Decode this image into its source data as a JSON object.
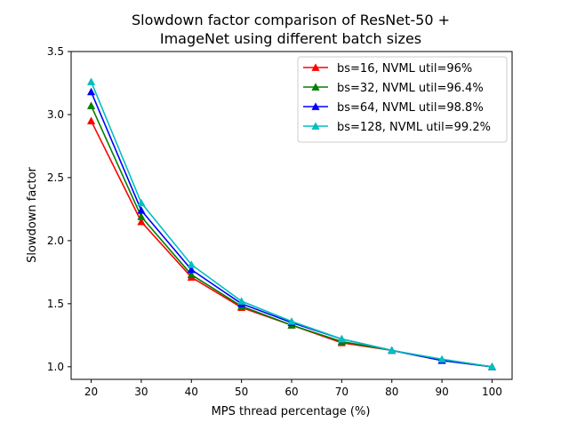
{
  "chart_data": {
    "type": "line",
    "title": [
      "Slowdown factor comparison of ResNet-50 +",
      "ImageNet using different batch sizes"
    ],
    "xlabel": "MPS thread percentage (%)",
    "ylabel": "Slowdown factor",
    "x": [
      20,
      30,
      40,
      50,
      60,
      70,
      80,
      90,
      100
    ],
    "xticks": [
      "20",
      "30",
      "40",
      "50",
      "60",
      "70",
      "80",
      "90",
      "100"
    ],
    "yticks": [
      "1.0",
      "1.5",
      "2.0",
      "2.5",
      "3.0",
      "3.5"
    ],
    "xlim": [
      16,
      104
    ],
    "ylim": [
      0.9,
      3.5
    ],
    "grid": false,
    "legend_position": "top-right",
    "marker": "triangle-up",
    "series": [
      {
        "name": "bs=16, NVML util=96%",
        "color": "#ff0000",
        "values": [
          2.95,
          2.15,
          1.71,
          1.47,
          1.33,
          1.19,
          1.13,
          1.05,
          1.0
        ]
      },
      {
        "name": "bs=32, NVML util=96.4%",
        "color": "#008000",
        "values": [
          3.07,
          2.19,
          1.73,
          1.48,
          1.33,
          1.2,
          1.13,
          1.05,
          1.0
        ]
      },
      {
        "name": "bs=64, NVML util=98.8%",
        "color": "#0000ff",
        "values": [
          3.18,
          2.24,
          1.77,
          1.5,
          1.35,
          1.22,
          1.13,
          1.05,
          1.0
        ]
      },
      {
        "name": "bs=128, NVML util=99.2%",
        "color": "#00bfbf",
        "values": [
          3.26,
          2.3,
          1.81,
          1.52,
          1.36,
          1.22,
          1.13,
          1.06,
          1.0
        ]
      }
    ]
  }
}
